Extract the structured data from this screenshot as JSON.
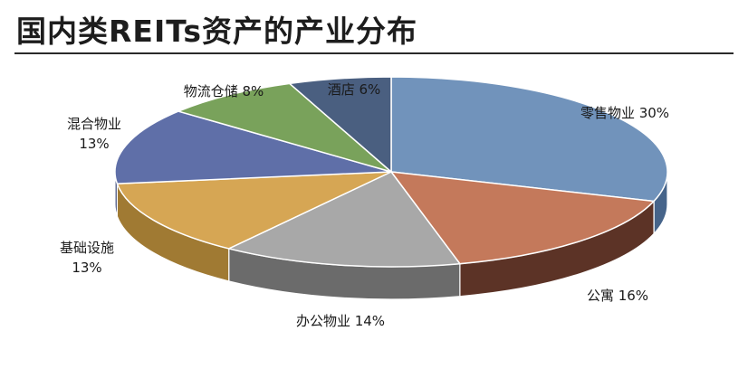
{
  "chart_data": {
    "type": "pie",
    "title": "国内类REITs资产的产业分布",
    "slices": [
      {
        "label": "零售物业",
        "value": 30,
        "text": [
          "零售物业 30%"
        ],
        "color": "#7193bb",
        "side": "#46648a"
      },
      {
        "label": "公寓",
        "value": 16,
        "text": [
          "公寓 16%"
        ],
        "color": "#c4795b",
        "side": "#5c3326"
      },
      {
        "label": "办公物业",
        "value": 14,
        "text": [
          "办公物业 14%"
        ],
        "color": "#a8a8a8",
        "side": "#6b6b6b"
      },
      {
        "label": "基础设施",
        "value": 13,
        "text": [
          "基础设施",
          "13%"
        ],
        "color": "#d6a654",
        "side": "#a07a33"
      },
      {
        "label": "混合物业",
        "value": 13,
        "text": [
          "混合物业",
          "13%"
        ],
        "color": "#5f6fa8",
        "side": "#3d4a7a"
      },
      {
        "label": "物流仓储",
        "value": 8,
        "text": [
          "物流仓储 8%"
        ],
        "color": "#79a25b",
        "side": "#52713c"
      },
      {
        "label": "酒店",
        "value": 6,
        "text": [
          "酒店 6%"
        ],
        "color": "#4a5f80",
        "side": "#2f3d55"
      }
    ]
  }
}
